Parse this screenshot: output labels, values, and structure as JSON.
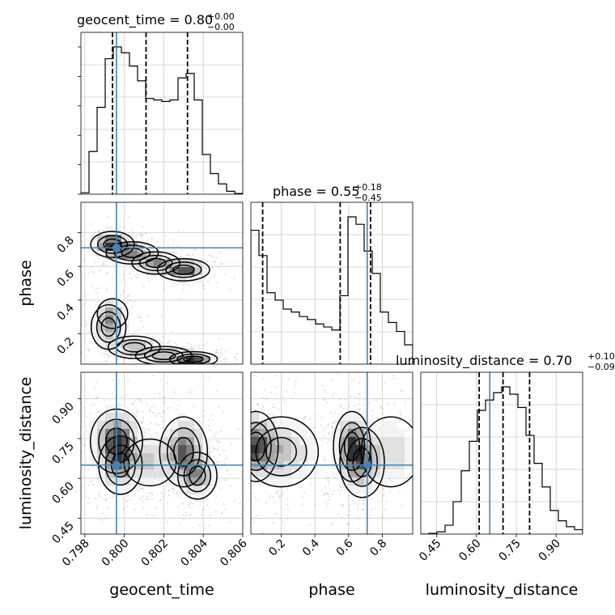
{
  "chart_data": {
    "type": "corner",
    "parameters": [
      "geocent_time",
      "phase",
      "luminosity_distance"
    ],
    "ranges": {
      "geocent_time": [
        0.7978,
        0.806
      ],
      "phase": [
        0.02,
        0.98
      ],
      "luminosity_distance": [
        0.39,
        1.0
      ]
    },
    "truths": {
      "geocent_time": 0.7996,
      "phase": 0.71,
      "luminosity_distance": 0.65
    },
    "titles": [
      {
        "name": "geocent_time = 0.80",
        "sup": "+0.00",
        "sub": "−0.00"
      },
      {
        "name": "phase = 0.55",
        "sup": "+0.18",
        "sub": "−0.45"
      },
      {
        "name": "luminosity_distance = 0.70",
        "sup": "+0.10",
        "sub": "−0.09"
      }
    ],
    "quantiles": {
      "geocent_time": [
        0.7994,
        0.8011,
        0.8032
      ],
      "phase": [
        0.09,
        0.55,
        0.73
      ],
      "luminosity_distance": [
        0.61,
        0.7,
        0.8
      ]
    },
    "ticks": {
      "geocent_time": {
        "values": [
          0.798,
          0.8,
          0.802,
          0.804,
          0.806
        ],
        "labels": [
          "0.798",
          "0.800",
          "0.802",
          "0.804",
          "0.806"
        ]
      },
      "phase": {
        "values": [
          0.2,
          0.4,
          0.6,
          0.8
        ],
        "labels": [
          "0.2",
          "0.4",
          "0.6",
          "0.8"
        ]
      },
      "luminosity_distance": {
        "values": [
          0.45,
          0.6,
          0.75,
          0.9
        ],
        "labels": [
          "0.45",
          "0.60",
          "0.75",
          "0.90"
        ]
      }
    },
    "histograms": {
      "geocent_time": {
        "edges": [
          0.7978,
          0.79821,
          0.79862,
          0.79903,
          0.79944,
          0.79985,
          0.80026,
          0.80067,
          0.80108,
          0.80149,
          0.8019,
          0.80231,
          0.80272,
          0.80313,
          0.80354,
          0.80395,
          0.80436,
          0.80477,
          0.80518,
          0.80559,
          0.806
        ],
        "counts": [
          0.01,
          0.29,
          0.59,
          0.92,
          1.0,
          0.96,
          0.87,
          0.77,
          0.65,
          0.64,
          0.63,
          0.64,
          0.79,
          0.82,
          0.64,
          0.27,
          0.14,
          0.07,
          0.02,
          0.005
        ]
      },
      "phase": {
        "edges": [
          0.02,
          0.068,
          0.116,
          0.164,
          0.212,
          0.26,
          0.308,
          0.356,
          0.404,
          0.452,
          0.5,
          0.548,
          0.596,
          0.644,
          0.692,
          0.74,
          0.788,
          0.836,
          0.884,
          0.932,
          0.98
        ],
        "counts": [
          0.9,
          0.73,
          0.48,
          0.43,
          0.37,
          0.35,
          0.32,
          0.3,
          0.27,
          0.25,
          0.23,
          0.46,
          0.99,
          0.94,
          0.76,
          0.61,
          0.35,
          0.28,
          0.22,
          0.13
        ]
      },
      "luminosity_distance": {
        "edges": [
          0.39,
          0.4205,
          0.451,
          0.4815,
          0.512,
          0.5425,
          0.573,
          0.6035,
          0.634,
          0.6645,
          0.695,
          0.7255,
          0.756,
          0.7865,
          0.817,
          0.8475,
          0.878,
          0.9085,
          0.939,
          0.9695,
          1.0
        ],
        "counts": [
          0.0,
          0.005,
          0.015,
          0.06,
          0.22,
          0.43,
          0.63,
          0.84,
          0.91,
          0.96,
          1.0,
          0.95,
          0.86,
          0.67,
          0.48,
          0.32,
          0.16,
          0.09,
          0.05,
          0.03
        ]
      }
    },
    "density_2d": [
      {
        "x": "geocent_time",
        "y": "phase",
        "blobs": [
          {
            "cx": 0.7994,
            "cy": 0.73,
            "sx": 0.0005,
            "sy": 0.035,
            "w": 1.0
          },
          {
            "cx": 0.8004,
            "cy": 0.68,
            "sx": 0.0006,
            "sy": 0.03,
            "w": 0.7
          },
          {
            "cx": 0.8016,
            "cy": 0.62,
            "sx": 0.00055,
            "sy": 0.03,
            "w": 0.6
          },
          {
            "cx": 0.803,
            "cy": 0.58,
            "sx": 0.0006,
            "sy": 0.03,
            "w": 0.85
          },
          {
            "cx": 0.7992,
            "cy": 0.24,
            "sx": 0.0004,
            "sy": 0.06,
            "w": 0.5
          },
          {
            "cx": 0.7994,
            "cy": 0.32,
            "sx": 0.00035,
            "sy": 0.04,
            "w": 0.4
          },
          {
            "cx": 0.8005,
            "cy": 0.12,
            "sx": 0.0006,
            "sy": 0.03,
            "w": 0.5
          },
          {
            "cx": 0.802,
            "cy": 0.07,
            "sx": 0.00065,
            "sy": 0.025,
            "w": 0.6
          },
          {
            "cx": 0.8035,
            "cy": 0.05,
            "sx": 0.00055,
            "sy": 0.02,
            "w": 0.9
          }
        ]
      },
      {
        "x": "geocent_time",
        "y": "luminosity_distance",
        "blobs": [
          {
            "cx": 0.7996,
            "cy": 0.74,
            "sx": 0.0006,
            "sy": 0.055,
            "w": 1.0
          },
          {
            "cx": 0.7998,
            "cy": 0.65,
            "sx": 0.0005,
            "sy": 0.05,
            "w": 0.6
          },
          {
            "cx": 0.803,
            "cy": 0.7,
            "sx": 0.00055,
            "sy": 0.06,
            "w": 0.85
          },
          {
            "cx": 0.8037,
            "cy": 0.61,
            "sx": 0.00045,
            "sy": 0.04,
            "w": 0.6
          },
          {
            "cx": 0.8013,
            "cy": 0.66,
            "sx": 0.0006,
            "sy": 0.04,
            "w": 0.35
          }
        ]
      },
      {
        "x": "phase",
        "y": "luminosity_distance",
        "blobs": [
          {
            "cx": 0.05,
            "cy": 0.72,
            "sx": 0.06,
            "sy": 0.06,
            "w": 1.0
          },
          {
            "cx": 0.2,
            "cy": 0.7,
            "sx": 0.1,
            "sy": 0.06,
            "w": 0.5
          },
          {
            "cx": 0.62,
            "cy": 0.72,
            "sx": 0.05,
            "sy": 0.06,
            "w": 1.0
          },
          {
            "cx": 0.68,
            "cy": 0.66,
            "sx": 0.06,
            "sy": 0.06,
            "w": 0.7
          },
          {
            "cx": 0.85,
            "cy": 0.7,
            "sx": 0.08,
            "sy": 0.06,
            "w": 0.35
          }
        ]
      }
    ],
    "truth_color": "#4682b4",
    "grid": true
  }
}
